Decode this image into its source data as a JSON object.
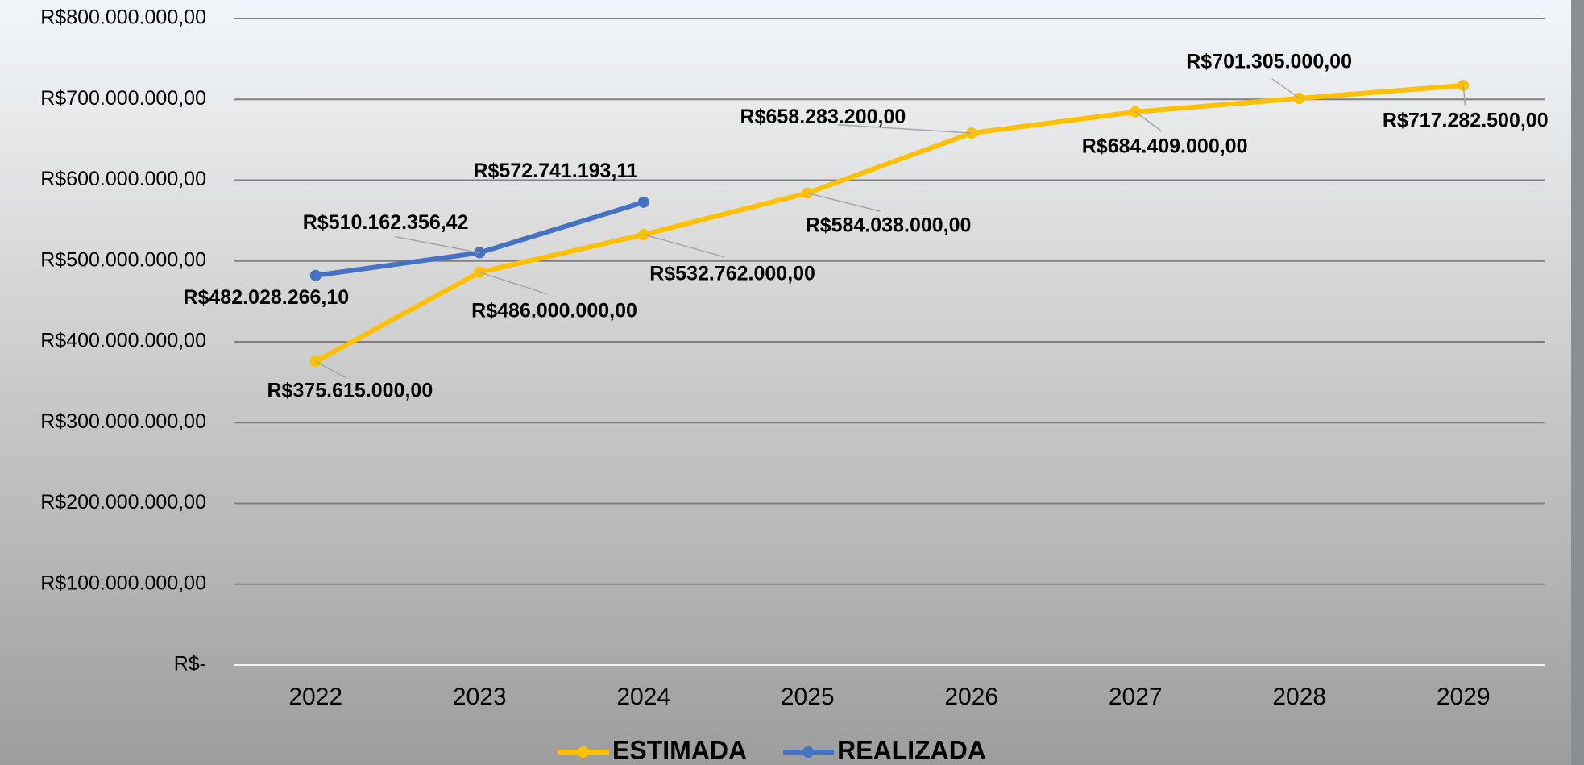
{
  "chart_data": {
    "type": "line",
    "categories": [
      "2022",
      "2023",
      "2024",
      "2025",
      "2026",
      "2027",
      "2028",
      "2029"
    ],
    "series": [
      {
        "name": "ESTIMADA",
        "color": "#FFC000",
        "values": [
          375615000,
          486000000,
          532762000,
          584038000,
          658283200,
          684409000,
          701305000,
          717282500
        ],
        "value_labels": [
          "R$375.615.000,00",
          "R$486.000.000,00",
          "R$532.762.000,00",
          "R$584.038.000,00",
          "R$658.283.200,00",
          "R$684.409.000,00",
          "R$701.305.000,00",
          "R$717.282.500,00"
        ]
      },
      {
        "name": "REALIZADA",
        "color": "#4472C4",
        "values": [
          482028266.1,
          510162356.42,
          572741193.11,
          null,
          null,
          null,
          null,
          null
        ],
        "value_labels": [
          "R$482.028.266,10",
          "R$510.162.356,42",
          "R$572.741.193,11",
          null,
          null,
          null,
          null,
          null
        ]
      }
    ],
    "ylim": [
      0,
      800000000
    ],
    "yticks": [
      {
        "value": 0,
        "label": "R$-"
      },
      {
        "value": 100000000,
        "label": "R$100.000.000,00"
      },
      {
        "value": 200000000,
        "label": "R$200.000.000,00"
      },
      {
        "value": 300000000,
        "label": "R$300.000.000,00"
      },
      {
        "value": 400000000,
        "label": "R$400.000.000,00"
      },
      {
        "value": 500000000,
        "label": "R$500.000.000,00"
      },
      {
        "value": 600000000,
        "label": "R$600.000.000,00"
      },
      {
        "value": 700000000,
        "label": "R$700.000.000,00"
      },
      {
        "value": 800000000,
        "label": "R$800.000.000,00"
      }
    ],
    "grid": true,
    "legend": "bottom"
  }
}
